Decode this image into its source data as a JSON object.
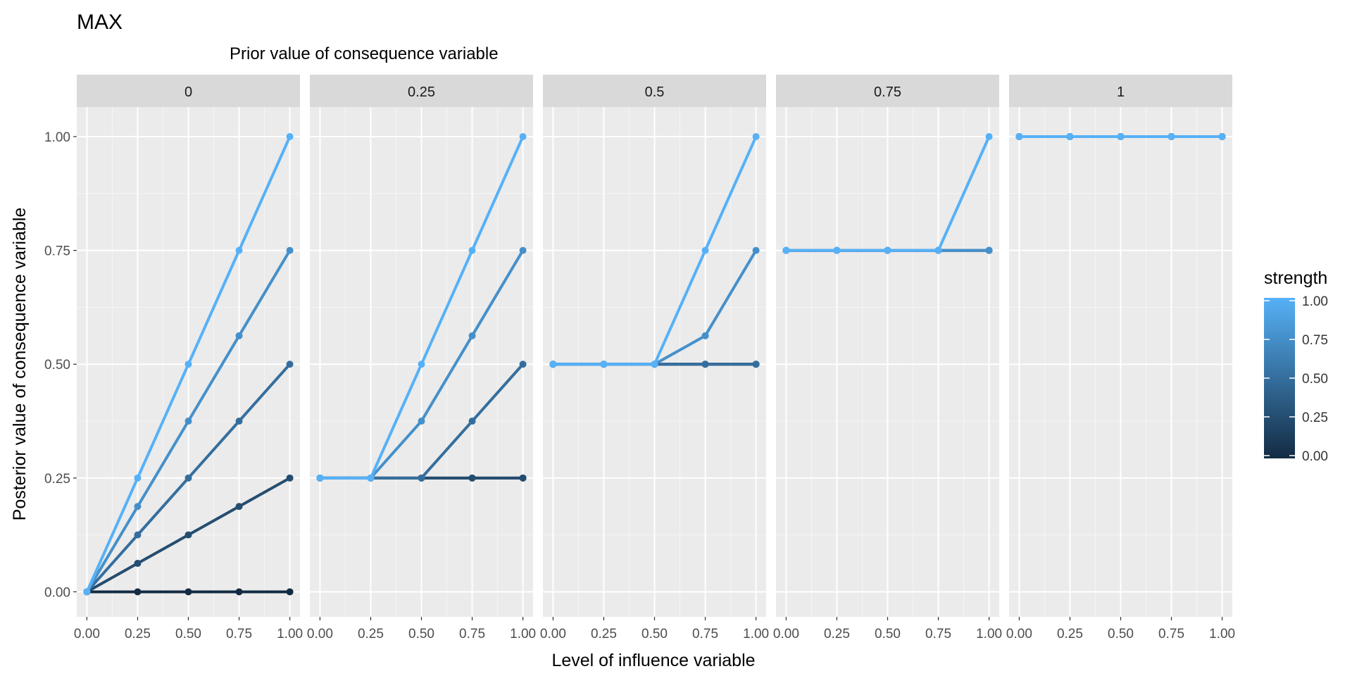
{
  "chart_data": {
    "type": "line",
    "title": "MAX",
    "subtitle": "Prior value of consequence variable",
    "xlabel": "Level of influence variable",
    "ylabel": "Posterior value of consequence variable",
    "facets": [
      "0",
      "0.25",
      "0.5",
      "0.75",
      "1"
    ],
    "x": [
      0,
      0.25,
      0.5,
      0.75,
      1
    ],
    "x_tick_labels": [
      "0.00",
      "0.25",
      "0.50",
      "0.75",
      "1.00"
    ],
    "y_tick_labels": [
      "0.00",
      "0.25",
      "0.50",
      "0.75",
      "1.00"
    ],
    "xlim": [
      -0.05,
      1.05
    ],
    "ylim": [
      -0.055,
      1.065
    ],
    "grid": true,
    "legend": {
      "title": "strength",
      "placement": "right",
      "type": "colorbar",
      "labels": [
        "1.00",
        "0.75",
        "0.50",
        "0.25",
        "0.00"
      ],
      "low_color": "#132B43",
      "high_color": "#56B1F7"
    },
    "series": [
      {
        "prior": 0,
        "strength": 0,
        "values": [
          0,
          0,
          0,
          0,
          0
        ]
      },
      {
        "prior": 0,
        "strength": 0.25,
        "values": [
          0,
          0.0625,
          0.125,
          0.1875,
          0.25
        ]
      },
      {
        "prior": 0,
        "strength": 0.5,
        "values": [
          0,
          0.125,
          0.25,
          0.375,
          0.5
        ]
      },
      {
        "prior": 0,
        "strength": 0.75,
        "values": [
          0,
          0.1875,
          0.375,
          0.5625,
          0.75
        ]
      },
      {
        "prior": 0,
        "strength": 1,
        "values": [
          0,
          0.25,
          0.5,
          0.75,
          1
        ]
      },
      {
        "prior": 0.25,
        "strength": 0,
        "values": [
          0.25,
          0.25,
          0.25,
          0.25,
          0.25
        ]
      },
      {
        "prior": 0.25,
        "strength": 0.25,
        "values": [
          0.25,
          0.25,
          0.25,
          0.25,
          0.25
        ]
      },
      {
        "prior": 0.25,
        "strength": 0.5,
        "values": [
          0.25,
          0.25,
          0.25,
          0.375,
          0.5
        ]
      },
      {
        "prior": 0.25,
        "strength": 0.75,
        "values": [
          0.25,
          0.25,
          0.375,
          0.5625,
          0.75
        ]
      },
      {
        "prior": 0.25,
        "strength": 1,
        "values": [
          0.25,
          0.25,
          0.5,
          0.75,
          1
        ]
      },
      {
        "prior": 0.5,
        "strength": 0,
        "values": [
          0.5,
          0.5,
          0.5,
          0.5,
          0.5
        ]
      },
      {
        "prior": 0.5,
        "strength": 0.25,
        "values": [
          0.5,
          0.5,
          0.5,
          0.5,
          0.5
        ]
      },
      {
        "prior": 0.5,
        "strength": 0.5,
        "values": [
          0.5,
          0.5,
          0.5,
          0.5,
          0.5
        ]
      },
      {
        "prior": 0.5,
        "strength": 0.75,
        "values": [
          0.5,
          0.5,
          0.5,
          0.5625,
          0.75
        ]
      },
      {
        "prior": 0.5,
        "strength": 1,
        "values": [
          0.5,
          0.5,
          0.5,
          0.75,
          1
        ]
      },
      {
        "prior": 0.75,
        "strength": 0,
        "values": [
          0.75,
          0.75,
          0.75,
          0.75,
          0.75
        ]
      },
      {
        "prior": 0.75,
        "strength": 0.25,
        "values": [
          0.75,
          0.75,
          0.75,
          0.75,
          0.75
        ]
      },
      {
        "prior": 0.75,
        "strength": 0.5,
        "values": [
          0.75,
          0.75,
          0.75,
          0.75,
          0.75
        ]
      },
      {
        "prior": 0.75,
        "strength": 0.75,
        "values": [
          0.75,
          0.75,
          0.75,
          0.75,
          0.75
        ]
      },
      {
        "prior": 0.75,
        "strength": 1,
        "values": [
          0.75,
          0.75,
          0.75,
          0.75,
          1
        ]
      },
      {
        "prior": 1,
        "strength": 0,
        "values": [
          1,
          1,
          1,
          1,
          1
        ]
      },
      {
        "prior": 1,
        "strength": 0.25,
        "values": [
          1,
          1,
          1,
          1,
          1
        ]
      },
      {
        "prior": 1,
        "strength": 0.5,
        "values": [
          1,
          1,
          1,
          1,
          1
        ]
      },
      {
        "prior": 1,
        "strength": 0.75,
        "values": [
          1,
          1,
          1,
          1,
          1
        ]
      },
      {
        "prior": 1,
        "strength": 1,
        "values": [
          1,
          1,
          1,
          1,
          1
        ]
      }
    ]
  }
}
